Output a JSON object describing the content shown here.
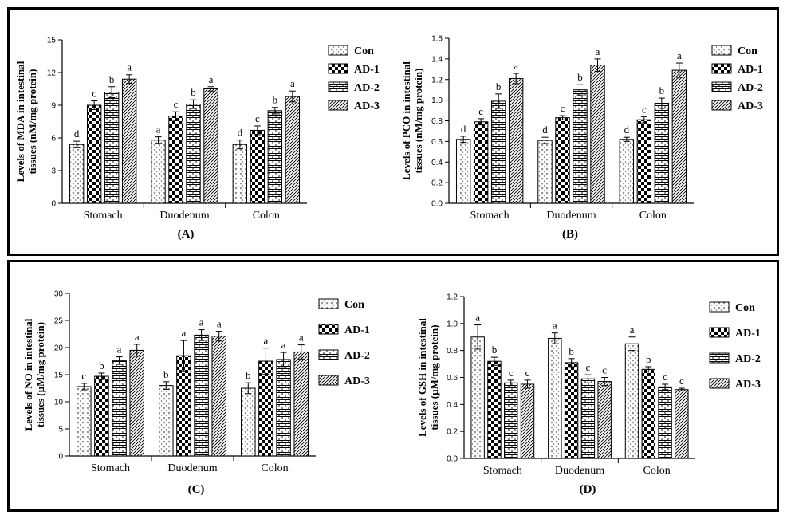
{
  "chart_data": [
    {
      "type": "bar",
      "panel_label": "(A)",
      "ylabel": "Levels of MDA in intestinal tissues (nM/mg protein)",
      "ylabel_lines": [
        "Levels of MDA in intestinal",
        "tissues (nM/mg protein)"
      ],
      "ylim": [
        0,
        15
      ],
      "yticks": [
        "0",
        "3",
        "6",
        "9",
        "12",
        "15"
      ],
      "categories": [
        "Stomach",
        "Duodenum",
        "Colon"
      ],
      "series": [
        {
          "name": "Con",
          "values": [
            5.4,
            5.8,
            5.4
          ],
          "errors": [
            0.3,
            0.3,
            0.4
          ],
          "letters": [
            "d",
            "a",
            "d"
          ]
        },
        {
          "name": "AD-1",
          "values": [
            9.0,
            8.0,
            6.7
          ],
          "errors": [
            0.4,
            0.4,
            0.4
          ],
          "letters": [
            "c",
            "c",
            "c"
          ]
        },
        {
          "name": "AD-2",
          "values": [
            10.2,
            9.1,
            8.5
          ],
          "errors": [
            0.5,
            0.4,
            0.3
          ],
          "letters": [
            "b",
            "b",
            "b"
          ]
        },
        {
          "name": "AD-3",
          "values": [
            11.4,
            10.5,
            9.8
          ],
          "errors": [
            0.4,
            0.2,
            0.5
          ],
          "letters": [
            "a",
            "a",
            "a"
          ]
        }
      ]
    },
    {
      "type": "bar",
      "panel_label": "(B)",
      "ylabel": "Levels of PCO in intestinal tissues (nM/mg protein)",
      "ylabel_lines": [
        "Levels of PCO in intestinal",
        "tissues (nM/mg protein)"
      ],
      "ylim": [
        0,
        1.6
      ],
      "yticks": [
        "0.0",
        "0.2",
        "0.4",
        "0.6",
        "0.8",
        "1.0",
        "1.2",
        "1.4",
        "1.6"
      ],
      "categories": [
        "Stomach",
        "Duodenum",
        "Colon"
      ],
      "series": [
        {
          "name": "Con",
          "values": [
            0.62,
            0.61,
            0.62
          ],
          "errors": [
            0.03,
            0.03,
            0.02
          ],
          "letters": [
            "d",
            "d",
            "d"
          ]
        },
        {
          "name": "AD-1",
          "values": [
            0.79,
            0.83,
            0.81
          ],
          "errors": [
            0.03,
            0.02,
            0.03
          ],
          "letters": [
            "c",
            "c",
            "c"
          ]
        },
        {
          "name": "AD-2",
          "values": [
            0.99,
            1.1,
            0.97
          ],
          "errors": [
            0.07,
            0.05,
            0.05
          ],
          "letters": [
            "b",
            "b",
            "b"
          ]
        },
        {
          "name": "AD-3",
          "values": [
            1.21,
            1.34,
            1.29
          ],
          "errors": [
            0.05,
            0.06,
            0.07
          ],
          "letters": [
            "a",
            "a",
            "a"
          ]
        }
      ]
    },
    {
      "type": "bar",
      "panel_label": "(C)",
      "ylabel": "Levels of NO in intestinal tissues (µM/mg protein)",
      "ylabel_lines": [
        "Levels of NO in intestinal",
        "tissues (µM/mg protein)"
      ],
      "ylim": [
        0,
        30
      ],
      "yticks": [
        "0",
        "5",
        "10",
        "15",
        "20",
        "25",
        "30"
      ],
      "categories": [
        "Stomach",
        "Duodenum",
        "Colon"
      ],
      "series": [
        {
          "name": "Con",
          "values": [
            12.8,
            13.0,
            12.5
          ],
          "errors": [
            0.6,
            0.7,
            1.0
          ],
          "letters": [
            "c",
            "b",
            "b"
          ]
        },
        {
          "name": "AD-1",
          "values": [
            14.7,
            18.5,
            17.5
          ],
          "errors": [
            0.6,
            2.8,
            2.4
          ],
          "letters": [
            "b",
            "a",
            "a"
          ]
        },
        {
          "name": "AD-2",
          "values": [
            17.6,
            22.3,
            17.8
          ],
          "errors": [
            0.7,
            1.0,
            1.3
          ],
          "letters": [
            "a",
            "a",
            "a"
          ]
        },
        {
          "name": "AD-3",
          "values": [
            19.5,
            22.1,
            19.2
          ],
          "errors": [
            1.1,
            0.9,
            1.3
          ],
          "letters": [
            "a",
            "a",
            "a"
          ]
        }
      ]
    },
    {
      "type": "bar",
      "panel_label": "(D)",
      "ylabel": "Levels of GSH in intestinal tissues (µM/mg protein)",
      "ylabel_lines": [
        "Levels of GSH in intestinal",
        "tissues (µM/mg protein)"
      ],
      "ylim": [
        0,
        1.2
      ],
      "yticks": [
        "0.0",
        "0.2",
        "0.4",
        "0.6",
        "0.8",
        "1.0",
        "1.2"
      ],
      "categories": [
        "Stomach",
        "Duodenum",
        "Colon"
      ],
      "series": [
        {
          "name": "Con",
          "values": [
            0.9,
            0.89,
            0.85
          ],
          "errors": [
            0.09,
            0.04,
            0.05
          ],
          "letters": [
            "a",
            "a",
            "a"
          ]
        },
        {
          "name": "AD-1",
          "values": [
            0.72,
            0.71,
            0.66
          ],
          "errors": [
            0.03,
            0.03,
            0.02
          ],
          "letters": [
            "b",
            "b",
            "b"
          ]
        },
        {
          "name": "AD-2",
          "values": [
            0.56,
            0.59,
            0.53
          ],
          "errors": [
            0.02,
            0.03,
            0.02
          ],
          "letters": [
            "c",
            "c",
            "c"
          ]
        },
        {
          "name": "AD-3",
          "values": [
            0.55,
            0.57,
            0.51
          ],
          "errors": [
            0.03,
            0.03,
            0.01
          ],
          "letters": [
            "c",
            "c",
            "c"
          ]
        }
      ]
    }
  ],
  "patterns": {
    "Con": "dots",
    "AD-1": "checker",
    "AD-2": "brick",
    "AD-3": "diagonal"
  }
}
